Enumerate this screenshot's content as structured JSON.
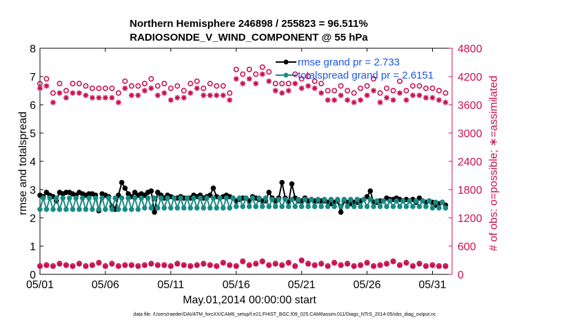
{
  "chart_data": {
    "type": "line",
    "title": "Northern Hemisphere 246898 / 255823 = 96.511%",
    "subtitle": "RADIOSONDE_V_WIND_COMPONENT @ 55 hPa",
    "xlabel": "May.01,2014 00:00:00 start",
    "ylabel": "rmse and totalspread",
    "ylabel_right": "# of obs: o=possible; ∗=assimilated",
    "footnote": "data file: /Users/raeder/DAI/ATM_forcXX/CAM6_setup/f.e21.FHIST_BGC.f09_025.CAM6assim.011/Diags_NTrS_2014-05/obs_diag_output.nc",
    "xlim": [
      0,
      31.5
    ],
    "ylim": [
      0,
      8
    ],
    "ylim_right": [
      0,
      4800
    ],
    "x_ticks": [
      0,
      5,
      10,
      15,
      20,
      25,
      30
    ],
    "x_tick_labels": [
      "05/01",
      "05/06",
      "05/11",
      "05/16",
      "05/21",
      "05/26",
      "05/31"
    ],
    "y_ticks": [
      0,
      1,
      2,
      3,
      4,
      5,
      6,
      7,
      8
    ],
    "y_tick_labels": [
      "0",
      "1",
      "2",
      "3",
      "4",
      "5",
      "6",
      "7",
      "8"
    ],
    "y_right_ticks": [
      0,
      600,
      1200,
      1800,
      2400,
      3000,
      3600,
      4200,
      4800
    ],
    "y_right_tick_labels": [
      "0",
      "600",
      "1200",
      "1800",
      "2400",
      "3000",
      "3600",
      "4200",
      "4800"
    ],
    "legend": [
      {
        "name": "rmse grand pr = 2.733",
        "color": "#000000"
      },
      {
        "name": "totalspread grand pr = 2.6151",
        "color": "#1a8a82"
      }
    ],
    "colors": {
      "rmse": "#000000",
      "totalspread": "#1a8a82",
      "obs": "#c8104f",
      "legend_text": "#1a56e6",
      "right_axis": "#c8104f"
    },
    "series": [
      {
        "name": "rmse",
        "x": [
          0.0,
          0.25,
          0.5,
          0.75,
          1.0,
          1.25,
          1.5,
          1.75,
          2.0,
          2.25,
          2.5,
          2.75,
          3.0,
          3.25,
          3.5,
          3.75,
          4.0,
          4.25,
          4.5,
          4.75,
          5.0,
          5.25,
          5.5,
          5.75,
          6.0,
          6.25,
          6.5,
          6.75,
          7.0,
          7.25,
          7.5,
          7.75,
          8.0,
          8.25,
          8.5,
          8.75,
          9.0,
          9.25,
          9.5,
          9.75,
          10.0,
          10.25,
          10.5,
          10.75,
          11.0,
          11.25,
          11.5,
          11.75,
          12.0,
          12.25,
          12.5,
          12.75,
          13.0,
          13.25,
          13.5,
          13.75,
          14.0,
          14.25,
          14.5,
          14.75,
          15.0,
          15.25,
          15.5,
          15.75,
          16.0,
          16.25,
          16.5,
          16.75,
          17.0,
          17.25,
          17.5,
          17.75,
          18.0,
          18.25,
          18.5,
          18.75,
          19.0,
          19.25,
          19.5,
          19.75,
          20.0,
          20.25,
          20.5,
          20.75,
          21.0,
          21.25,
          21.5,
          21.75,
          22.0,
          22.25,
          22.5,
          22.75,
          23.0,
          23.25,
          23.5,
          23.75,
          24.0,
          24.25,
          24.5,
          24.75,
          25.0,
          25.25,
          25.5,
          25.75,
          26.0,
          26.25,
          26.5,
          26.75,
          27.0,
          27.25,
          27.5,
          27.75,
          28.0,
          28.25,
          28.5,
          28.75,
          29.0,
          29.25,
          29.5,
          29.75,
          30.0,
          30.25,
          30.5,
          30.75,
          31.0
        ],
        "values": [
          2.8,
          2.75,
          2.9,
          2.8,
          2.75,
          2.6,
          2.9,
          2.85,
          2.9,
          2.9,
          2.85,
          2.8,
          2.9,
          2.85,
          2.8,
          2.85,
          2.85,
          2.8,
          2.25,
          2.85,
          2.8,
          2.75,
          2.4,
          2.3,
          2.8,
          3.25,
          3.05,
          2.85,
          2.75,
          2.9,
          2.8,
          2.85,
          2.8,
          2.9,
          2.95,
          2.2,
          2.9,
          2.8,
          2.7,
          2.8,
          2.75,
          2.7,
          2.7,
          2.75,
          2.7,
          2.7,
          2.7,
          2.8,
          2.75,
          2.8,
          2.7,
          2.75,
          2.8,
          3.05,
          2.75,
          2.7,
          2.75,
          2.8,
          2.75,
          2.7,
          2.6,
          2.65,
          2.7,
          2.7,
          2.6,
          2.75,
          2.7,
          2.65,
          2.6,
          2.6,
          2.9,
          2.7,
          2.6,
          2.7,
          3.25,
          2.7,
          2.55,
          3.2,
          2.7,
          2.6,
          2.6,
          2.7,
          2.6,
          2.65,
          2.6,
          2.6,
          2.6,
          2.6,
          2.55,
          2.5,
          2.55,
          2.6,
          2.2,
          2.6,
          2.55,
          2.5,
          2.55,
          2.55,
          2.6,
          2.65,
          2.75,
          2.95,
          2.55,
          2.55,
          2.6,
          2.6,
          2.7,
          2.65,
          2.65,
          2.7,
          2.65,
          2.6,
          2.65,
          2.6,
          2.65,
          2.55,
          2.7,
          2.6,
          2.55,
          2.6,
          2.55,
          2.45,
          2.5,
          2.55,
          2.45
        ]
      },
      {
        "name": "totalspread",
        "x": [
          0.0,
          0.25,
          0.5,
          0.75,
          1.0,
          1.25,
          1.5,
          1.75,
          2.0,
          2.25,
          2.5,
          2.75,
          3.0,
          3.25,
          3.5,
          3.75,
          4.0,
          4.25,
          4.5,
          4.75,
          5.0,
          5.25,
          5.5,
          5.75,
          6.0,
          6.25,
          6.5,
          6.75,
          7.0,
          7.25,
          7.5,
          7.75,
          8.0,
          8.25,
          8.5,
          8.75,
          9.0,
          9.25,
          9.5,
          9.75,
          10.0,
          10.25,
          10.5,
          10.75,
          11.0,
          11.25,
          11.5,
          11.75,
          12.0,
          12.25,
          12.5,
          12.75,
          13.0,
          13.25,
          13.5,
          13.75,
          14.0,
          14.25,
          14.5,
          14.75,
          15.0,
          15.25,
          15.5,
          15.75,
          16.0,
          16.25,
          16.5,
          16.75,
          17.0,
          17.25,
          17.5,
          17.75,
          18.0,
          18.25,
          18.5,
          18.75,
          19.0,
          19.25,
          19.5,
          19.75,
          20.0,
          20.25,
          20.5,
          20.75,
          21.0,
          21.25,
          21.5,
          21.75,
          22.0,
          22.25,
          22.5,
          22.75,
          23.0,
          23.25,
          23.5,
          23.75,
          24.0,
          24.25,
          24.5,
          24.75,
          25.0,
          25.25,
          25.5,
          25.75,
          26.0,
          26.25,
          26.5,
          26.75,
          27.0,
          27.25,
          27.5,
          27.75,
          28.0,
          28.25,
          28.5,
          28.75,
          29.0,
          29.25,
          29.5,
          29.75,
          30.0,
          30.25,
          30.5,
          30.75,
          31.0
        ],
        "values": [
          2.3,
          2.7,
          2.3,
          2.7,
          2.3,
          2.7,
          2.3,
          2.7,
          2.3,
          2.7,
          2.3,
          2.7,
          2.3,
          2.7,
          2.3,
          2.7,
          2.3,
          2.7,
          2.3,
          2.7,
          2.3,
          2.7,
          2.3,
          2.7,
          2.3,
          2.7,
          2.3,
          2.7,
          2.3,
          2.7,
          2.3,
          2.7,
          2.35,
          2.7,
          2.35,
          2.7,
          2.35,
          2.7,
          2.35,
          2.7,
          2.35,
          2.7,
          2.35,
          2.7,
          2.35,
          2.7,
          2.35,
          2.7,
          2.35,
          2.7,
          2.35,
          2.7,
          2.35,
          2.7,
          2.35,
          2.7,
          2.35,
          2.7,
          2.35,
          2.7,
          2.4,
          2.7,
          2.4,
          2.7,
          2.4,
          2.7,
          2.4,
          2.7,
          2.4,
          2.7,
          2.4,
          2.65,
          2.4,
          2.65,
          2.4,
          2.65,
          2.4,
          2.65,
          2.4,
          2.65,
          2.4,
          2.65,
          2.4,
          2.65,
          2.4,
          2.65,
          2.4,
          2.65,
          2.4,
          2.65,
          2.4,
          2.65,
          2.4,
          2.65,
          2.4,
          2.65,
          2.4,
          2.65,
          2.4,
          2.65,
          2.4,
          2.65,
          2.4,
          2.6,
          2.4,
          2.6,
          2.4,
          2.6,
          2.4,
          2.6,
          2.4,
          2.6,
          2.4,
          2.6,
          2.4,
          2.6,
          2.4,
          2.6,
          2.4,
          2.6,
          2.35,
          2.55,
          2.35,
          2.55,
          2.35
        ]
      },
      {
        "name": "obs_possible",
        "axis": "right",
        "marker": "circle",
        "x": [
          0.0,
          0.5,
          1.0,
          1.5,
          2.0,
          2.5,
          3.0,
          3.5,
          4.0,
          4.5,
          5.0,
          5.5,
          6.0,
          6.5,
          7.0,
          7.5,
          8.0,
          8.5,
          9.0,
          9.5,
          10.0,
          10.5,
          11.0,
          11.5,
          12.0,
          12.5,
          13.0,
          13.5,
          14.0,
          14.5,
          15.0,
          15.5,
          16.0,
          16.5,
          17.0,
          17.5,
          18.0,
          18.5,
          19.0,
          19.5,
          20.0,
          20.5,
          21.0,
          21.5,
          22.0,
          22.5,
          23.0,
          23.5,
          24.0,
          24.5,
          25.0,
          25.5,
          26.0,
          26.5,
          27.0,
          27.5,
          28.0,
          28.5,
          29.0,
          29.5,
          30.0,
          30.5,
          31.0
        ],
        "values": [
          4050,
          4150,
          3850,
          4050,
          3900,
          4050,
          4050,
          4000,
          3950,
          3950,
          3950,
          3950,
          3850,
          4100,
          4000,
          4000,
          4050,
          4150,
          4000,
          4050,
          3950,
          4000,
          3900,
          4050,
          4100,
          3950,
          4050,
          4000,
          4000,
          3850,
          4350,
          4250,
          4350,
          4250,
          4400,
          4300,
          4050,
          4050,
          4050,
          4250,
          4150,
          4200,
          4100,
          4050,
          3900,
          3900,
          4000,
          3900,
          3850,
          3950,
          4000,
          4150,
          3850,
          3950,
          3900,
          4100,
          3900,
          4000,
          4000,
          3950,
          3950,
          3900,
          3850
        ]
      },
      {
        "name": "obs_assimilated",
        "axis": "right",
        "marker": "asterisk",
        "x": [
          0.0,
          0.5,
          1.0,
          1.5,
          2.0,
          2.5,
          3.0,
          3.5,
          4.0,
          4.5,
          5.0,
          5.5,
          6.0,
          6.5,
          7.0,
          7.5,
          8.0,
          8.5,
          9.0,
          9.5,
          10.0,
          10.5,
          11.0,
          11.5,
          12.0,
          12.5,
          13.0,
          13.5,
          14.0,
          14.5,
          15.0,
          15.5,
          16.0,
          16.5,
          17.0,
          17.5,
          18.0,
          18.5,
          19.0,
          19.5,
          20.0,
          20.5,
          21.0,
          21.5,
          22.0,
          22.5,
          23.0,
          23.5,
          24.0,
          24.5,
          25.0,
          25.5,
          26.0,
          26.5,
          27.0,
          27.5,
          28.0,
          28.5,
          29.0,
          29.5,
          30.0,
          30.5,
          31.0
        ],
        "values": [
          3950,
          4000,
          3650,
          3850,
          3750,
          3850,
          3850,
          3800,
          3750,
          3750,
          3750,
          3750,
          3650,
          3950,
          3800,
          3800,
          3900,
          3950,
          3800,
          3850,
          3700,
          3750,
          3750,
          3850,
          3950,
          3800,
          3800,
          3800,
          3800,
          3700,
          4150,
          4050,
          4150,
          4050,
          4250,
          4100,
          3900,
          3850,
          3900,
          4050,
          3950,
          4000,
          3950,
          3850,
          3700,
          3700,
          3800,
          3700,
          3650,
          3700,
          3800,
          3900,
          3650,
          3750,
          3700,
          3850,
          3700,
          3800,
          3800,
          3750,
          3750,
          3700,
          3650
        ]
      },
      {
        "name": "obs_possible_low",
        "axis": "right",
        "marker": "circle",
        "x": [
          0.0,
          0.5,
          1.0,
          1.5,
          2.0,
          2.5,
          3.0,
          3.5,
          4.0,
          4.5,
          5.0,
          5.5,
          6.0,
          6.5,
          7.0,
          7.5,
          8.0,
          8.5,
          9.0,
          9.5,
          10.0,
          10.5,
          11.0,
          11.5,
          12.0,
          12.5,
          13.0,
          13.5,
          14.0,
          14.5,
          15.0,
          15.5,
          16.0,
          16.5,
          17.0,
          17.5,
          18.0,
          18.5,
          19.0,
          19.5,
          20.0,
          20.5,
          21.0,
          21.5,
          22.0,
          22.5,
          23.0,
          23.5,
          24.0,
          24.5,
          25.0,
          25.5,
          26.0,
          26.5,
          27.0,
          27.5,
          28.0,
          28.5,
          29.0,
          29.5,
          30.0,
          30.5,
          31.0
        ],
        "values": [
          180,
          200,
          180,
          230,
          200,
          180,
          230,
          180,
          200,
          250,
          180,
          230,
          180,
          200,
          200,
          180,
          200,
          230,
          200,
          200,
          180,
          230,
          200,
          180,
          200,
          230,
          200,
          180,
          250,
          200,
          180,
          280,
          200,
          230,
          280,
          200,
          230,
          200,
          250,
          180,
          300,
          230,
          200,
          230,
          180,
          250,
          200,
          230,
          180,
          200,
          250,
          180,
          200,
          230,
          280,
          200,
          250,
          180,
          230,
          180,
          200,
          180,
          180
        ]
      },
      {
        "name": "obs_assimilated_low",
        "axis": "right",
        "marker": "asterisk",
        "x": [
          0.0,
          0.5,
          1.0,
          1.5,
          2.0,
          2.5,
          3.0,
          3.5,
          4.0,
          4.5,
          5.0,
          5.5,
          6.0,
          6.5,
          7.0,
          7.5,
          8.0,
          8.5,
          9.0,
          9.5,
          10.0,
          10.5,
          11.0,
          11.5,
          12.0,
          12.5,
          13.0,
          13.5,
          14.0,
          14.5,
          15.0,
          15.5,
          16.0,
          16.5,
          17.0,
          17.5,
          18.0,
          18.5,
          19.0,
          19.5,
          20.0,
          20.5,
          21.0,
          21.5,
          22.0,
          22.5,
          23.0,
          23.5,
          24.0,
          24.5,
          25.0,
          25.5,
          26.0,
          26.5,
          27.0,
          27.5,
          28.0,
          28.5,
          29.0,
          29.5,
          30.0,
          30.5,
          31.0
        ],
        "values": [
          170,
          190,
          170,
          220,
          190,
          170,
          220,
          170,
          190,
          240,
          170,
          220,
          170,
          190,
          190,
          170,
          190,
          220,
          190,
          190,
          170,
          220,
          190,
          170,
          190,
          220,
          190,
          170,
          240,
          190,
          170,
          270,
          190,
          220,
          270,
          190,
          220,
          190,
          240,
          170,
          290,
          220,
          190,
          220,
          170,
          240,
          190,
          220,
          170,
          190,
          240,
          170,
          190,
          220,
          270,
          190,
          240,
          170,
          220,
          170,
          190,
          170,
          170
        ]
      }
    ]
  }
}
